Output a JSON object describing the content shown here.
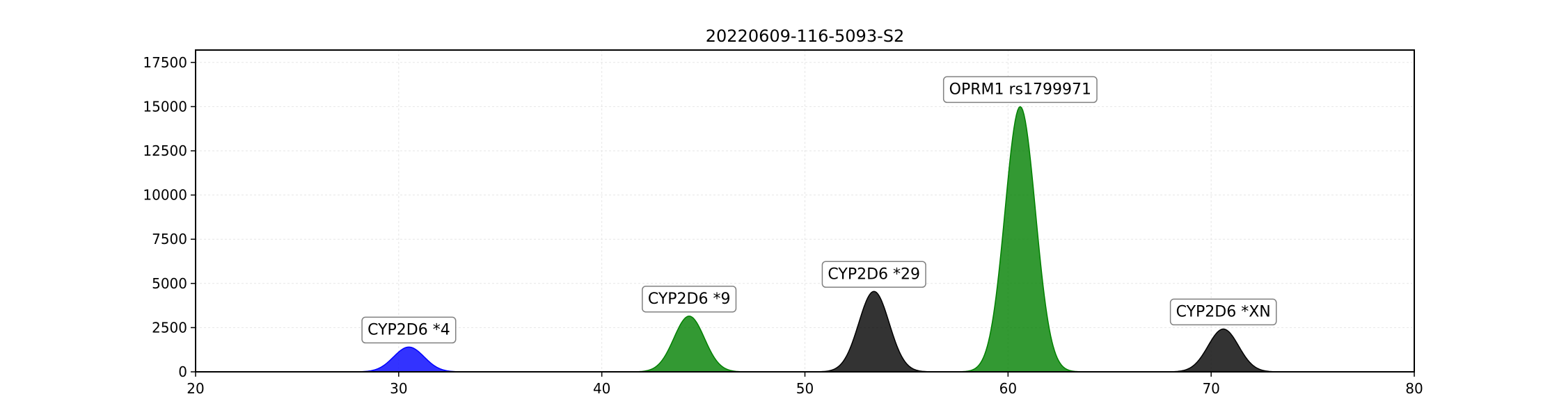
{
  "chart_data": {
    "type": "area",
    "title": "20220609-116-5093-S2",
    "xlabel": "",
    "ylabel": "",
    "xlim": [
      20,
      80
    ],
    "ylim": [
      0,
      18200
    ],
    "x_ticks": [
      20,
      30,
      40,
      50,
      60,
      70,
      80
    ],
    "y_ticks": [
      0,
      2500,
      5000,
      7500,
      10000,
      12500,
      15000,
      17500
    ],
    "grid": true,
    "peaks": [
      {
        "label": "CYP2D6 *4",
        "center": 30.5,
        "height": 1400,
        "sigma": 0.75,
        "color": "#0000ff"
      },
      {
        "label": "CYP2D6 *9",
        "center": 44.3,
        "height": 3150,
        "sigma": 0.75,
        "color": "#008000"
      },
      {
        "label": "CYP2D6 *29",
        "center": 53.4,
        "height": 4550,
        "sigma": 0.75,
        "color": "#000000"
      },
      {
        "label": "OPRM1 rs1799971",
        "center": 60.6,
        "height": 15000,
        "sigma": 0.75,
        "color": "#008000"
      },
      {
        "label": "CYP2D6 *XN",
        "center": 70.6,
        "height": 2420,
        "sigma": 0.75,
        "color": "#000000"
      }
    ]
  }
}
